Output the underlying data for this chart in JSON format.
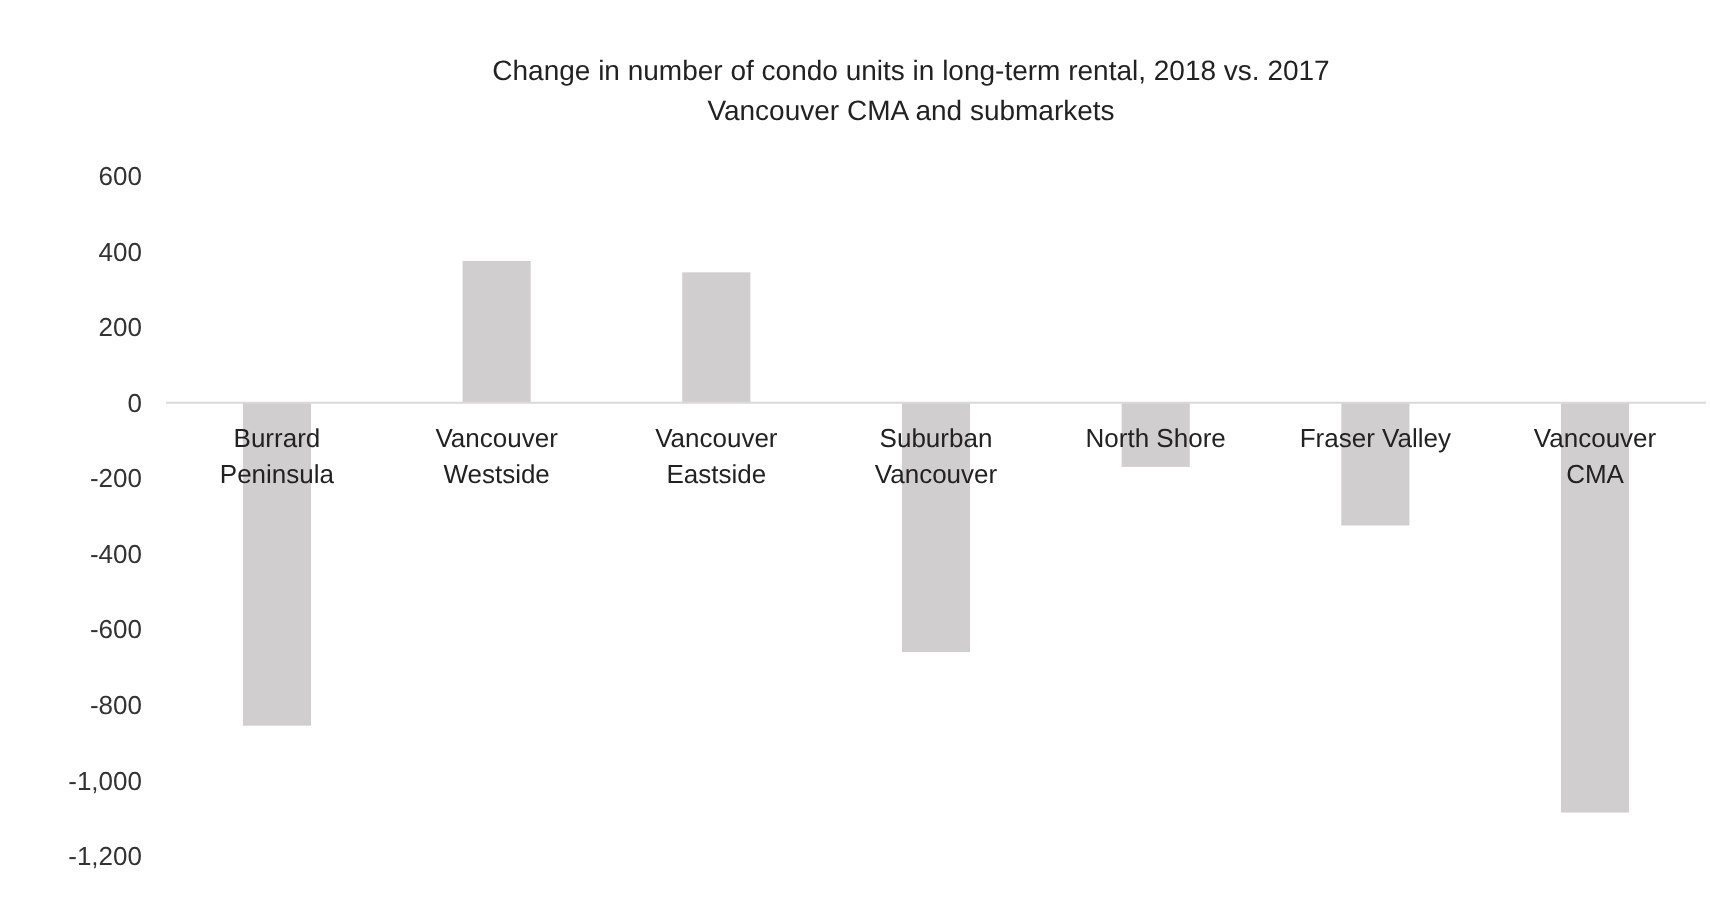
{
  "chart_data": {
    "type": "bar",
    "title": "Change in number of condo units in long-term rental, 2018 vs. 2017",
    "subtitle": "Vancouver CMA and submarkets",
    "categories": [
      "Burrard Peninsula",
      "Vancouver Westside",
      "Vancouver Eastside",
      "Suburban Vancouver",
      "North Shore",
      "Fraser Valley",
      "Vancouver CMA"
    ],
    "values": [
      -855,
      375,
      345,
      -660,
      -170,
      -325,
      -1085
    ],
    "color": "#d0cece",
    "ylim": [
      -1200,
      600
    ],
    "yticks": [
      {
        "value": -1200,
        "label": "-1,200"
      },
      {
        "value": -1000,
        "label": "-1,000"
      },
      -800,
      -600,
      -400,
      -200,
      0,
      200,
      400,
      600
    ],
    "grid": false
  }
}
